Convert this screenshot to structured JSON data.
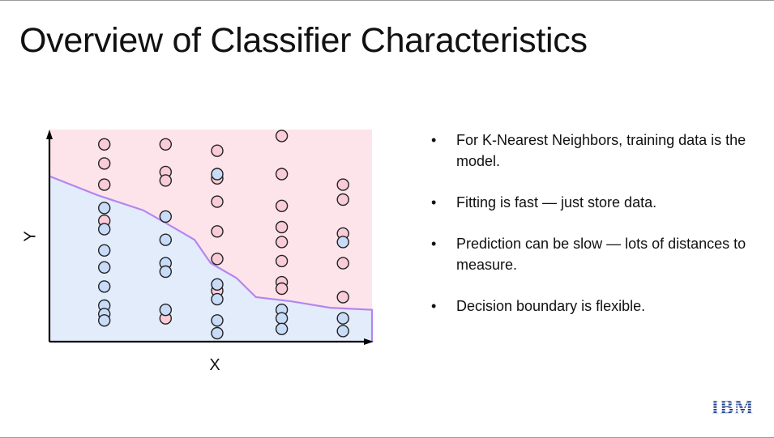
{
  "slide": {
    "title": "Overview of Classifier Characteristics",
    "logo_text": "IBM"
  },
  "bullets": [
    "For K-Nearest Neighbors, training data is the model.",
    "Fitting is fast — just store data.",
    "Prediction can be slow — lots of distances to measure.",
    "Decision boundary is flexible."
  ],
  "colors": {
    "region_pink": "#fde4ea",
    "region_blue": "#e3ecfb",
    "boundary": "#b585f0",
    "point_pink_fill": "#f9ccd8",
    "point_blue_fill": "#c8dcf8",
    "point_stroke": "#222222",
    "logo": "#1d3f8f"
  },
  "chart_data": {
    "type": "scatter",
    "xlabel": "X",
    "ylabel": "Y",
    "xlim": [
      0,
      1
    ],
    "ylim": [
      0,
      1
    ],
    "boundary": [
      {
        "x": 0.0,
        "y": 0.78
      },
      {
        "x": 0.15,
        "y": 0.69
      },
      {
        "x": 0.29,
        "y": 0.62
      },
      {
        "x": 0.36,
        "y": 0.56
      },
      {
        "x": 0.45,
        "y": 0.48
      },
      {
        "x": 0.5,
        "y": 0.37
      },
      {
        "x": 0.58,
        "y": 0.3
      },
      {
        "x": 0.64,
        "y": 0.21
      },
      {
        "x": 0.75,
        "y": 0.19
      },
      {
        "x": 0.87,
        "y": 0.16
      },
      {
        "x": 1.0,
        "y": 0.15
      }
    ],
    "series": [
      {
        "class": "pink",
        "points": [
          {
            "x": 0.17,
            "y": 0.93
          },
          {
            "x": 0.17,
            "y": 0.84
          },
          {
            "x": 0.17,
            "y": 0.74
          },
          {
            "x": 0.17,
            "y": 0.57
          },
          {
            "x": 0.36,
            "y": 0.93
          },
          {
            "x": 0.36,
            "y": 0.8
          },
          {
            "x": 0.36,
            "y": 0.76
          },
          {
            "x": 0.36,
            "y": 0.11
          },
          {
            "x": 0.52,
            "y": 0.9
          },
          {
            "x": 0.52,
            "y": 0.77
          },
          {
            "x": 0.52,
            "y": 0.66
          },
          {
            "x": 0.52,
            "y": 0.52
          },
          {
            "x": 0.52,
            "y": 0.39
          },
          {
            "x": 0.52,
            "y": 0.24
          },
          {
            "x": 0.72,
            "y": 0.97
          },
          {
            "x": 0.72,
            "y": 0.79
          },
          {
            "x": 0.72,
            "y": 0.64
          },
          {
            "x": 0.72,
            "y": 0.54
          },
          {
            "x": 0.72,
            "y": 0.47
          },
          {
            "x": 0.72,
            "y": 0.38
          },
          {
            "x": 0.72,
            "y": 0.28
          },
          {
            "x": 0.72,
            "y": 0.25
          },
          {
            "x": 0.91,
            "y": 0.74
          },
          {
            "x": 0.91,
            "y": 0.67
          },
          {
            "x": 0.91,
            "y": 0.51
          },
          {
            "x": 0.91,
            "y": 0.37
          },
          {
            "x": 0.91,
            "y": 0.21
          }
        ]
      },
      {
        "class": "blue",
        "points": [
          {
            "x": 0.17,
            "y": 0.63
          },
          {
            "x": 0.17,
            "y": 0.53
          },
          {
            "x": 0.17,
            "y": 0.43
          },
          {
            "x": 0.17,
            "y": 0.35
          },
          {
            "x": 0.17,
            "y": 0.26
          },
          {
            "x": 0.17,
            "y": 0.17
          },
          {
            "x": 0.17,
            "y": 0.13
          },
          {
            "x": 0.17,
            "y": 0.1
          },
          {
            "x": 0.36,
            "y": 0.59
          },
          {
            "x": 0.36,
            "y": 0.48
          },
          {
            "x": 0.36,
            "y": 0.37
          },
          {
            "x": 0.36,
            "y": 0.33
          },
          {
            "x": 0.36,
            "y": 0.15
          },
          {
            "x": 0.52,
            "y": 0.79
          },
          {
            "x": 0.52,
            "y": 0.27
          },
          {
            "x": 0.52,
            "y": 0.2
          },
          {
            "x": 0.52,
            "y": 0.1
          },
          {
            "x": 0.52,
            "y": 0.04
          },
          {
            "x": 0.72,
            "y": 0.15
          },
          {
            "x": 0.72,
            "y": 0.11
          },
          {
            "x": 0.72,
            "y": 0.06
          },
          {
            "x": 0.91,
            "y": 0.47
          },
          {
            "x": 0.91,
            "y": 0.11
          },
          {
            "x": 0.91,
            "y": 0.05
          }
        ]
      }
    ]
  }
}
